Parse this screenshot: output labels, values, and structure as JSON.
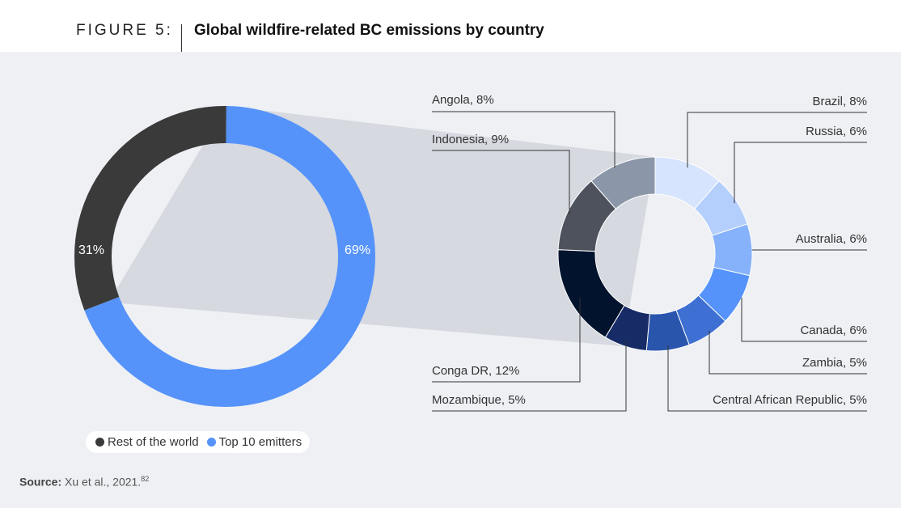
{
  "header": {
    "figure_label": "FIGURE 5:",
    "title": "Global wildfire-related BC emissions by country"
  },
  "chart_data": [
    {
      "type": "pie",
      "variant": "donut",
      "categories": [
        "Rest of the world",
        "Top 10 emitters"
      ],
      "values": [
        31,
        69
      ],
      "data_labels": [
        "31%",
        "69%"
      ],
      "colors": [
        "#3b3a3a",
        "#5593fa"
      ],
      "legend_position": "bottom-left"
    },
    {
      "type": "pie",
      "variant": "donut",
      "categories": [
        "Brazil",
        "Russia",
        "Australia",
        "Canada",
        "Zambia",
        "Central African Republic",
        "Mozambique",
        "Conga DR",
        "Indonesia",
        "Angola"
      ],
      "values": [
        8,
        6,
        6,
        6,
        5,
        5,
        5,
        12,
        9,
        8
      ],
      "data_labels": [
        "Brazil, 8%",
        "Russia, 6%",
        "Australia, 6%",
        "Canada, 6%",
        "Zambia, 5%",
        "Central African Republic, 5%",
        "Mozambique, 5%",
        "Conga DR, 12%",
        "Indonesia, 9%",
        "Angola, 8%"
      ],
      "colors": [
        "#d6e4fd",
        "#b4cffb",
        "#86b2fb",
        "#5593fa",
        "#3e6fd3",
        "#2a55ad",
        "#172b66",
        "#02132e",
        "#4d525d",
        "#8b97a9"
      ]
    }
  ],
  "legend": {
    "items": [
      {
        "label": "Rest of the world",
        "color": "#3b3a3a"
      },
      {
        "label": "Top 10 emitters",
        "color": "#5593fa"
      }
    ]
  },
  "source": {
    "prefix": "Source:",
    "text": " Xu et al., 2021.",
    "ref": "82"
  }
}
